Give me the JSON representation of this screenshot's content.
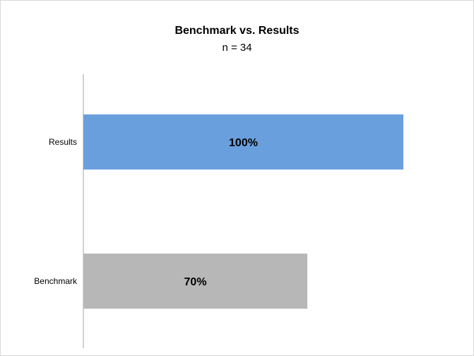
{
  "chart_data": {
    "type": "bar",
    "orientation": "horizontal",
    "title": "Benchmark vs. Results",
    "subtitle": "n = 34",
    "categories": [
      "Results",
      "Benchmark"
    ],
    "values": [
      100,
      70
    ],
    "data_labels": [
      "100%",
      "70%"
    ],
    "xlim": [
      0,
      100
    ],
    "colors": [
      "#6a9fdd",
      "#b7b7b7"
    ],
    "grid": false,
    "legend": "none",
    "xlabel": "",
    "ylabel": ""
  }
}
